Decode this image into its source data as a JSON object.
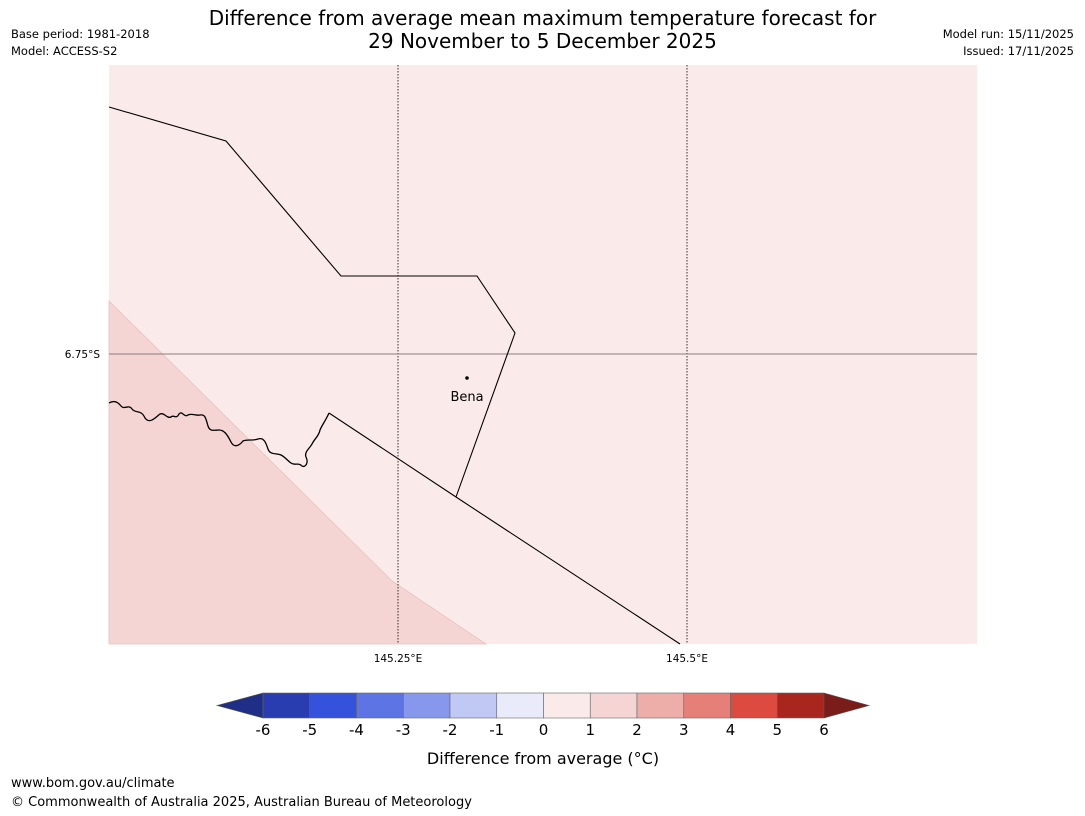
{
  "title_line1": "Difference from average mean maximum temperature forecast for",
  "title_line2": "29 November to 5 December 2025",
  "base_period": "Base period: 1981-2018",
  "model": "Model: ACCESS-S2",
  "model_run": "Model run: 15/11/2025",
  "issued": "Issued: 17/11/2025",
  "map": {
    "lat_label": "6.75°S",
    "lon_labels": [
      "145.25°E",
      "145.5°E"
    ],
    "place_name": "Bena"
  },
  "colorbar": {
    "ticks": [
      "-6",
      "-5",
      "-4",
      "-3",
      "-2",
      "-1",
      "0",
      "1",
      "2",
      "3",
      "4",
      "5",
      "6"
    ],
    "colors": [
      "#1f2f88",
      "#2a3db0",
      "#3452dc",
      "#5c74e4",
      "#8798ec",
      "#c0c8f4",
      "#e9ebfb",
      "#fbeaea",
      "#f4d5d3",
      "#edaeaa",
      "#e67f78",
      "#dd4a3f",
      "#a9261f",
      "#7a1c18"
    ],
    "label": "Difference from average (°C)"
  },
  "region_colors": {
    "background": "#fbeaea",
    "warm_region": "#f4d5d3"
  },
  "footer": {
    "url": "www.bom.gov.au/climate",
    "copyright": "© Commonwealth of Australia 2025, Australian Bureau of Meteorology"
  }
}
